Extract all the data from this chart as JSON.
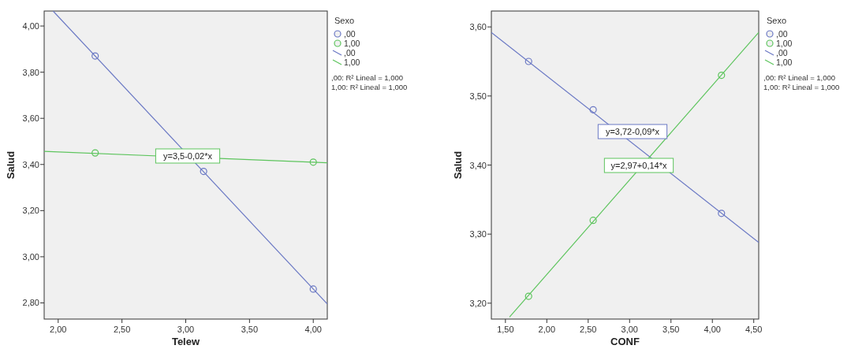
{
  "chart_data": [
    {
      "type": "scatter",
      "xlabel": "Telew",
      "ylabel": "Salud",
      "legend_title": "Sexo",
      "legend": "right",
      "grid": false,
      "xlim": [
        1.89,
        4.11
      ],
      "ylim": [
        2.73,
        4.065
      ],
      "xticks": [
        {
          "value": 2,
          "label": "2,00"
        },
        {
          "value": 2.5,
          "label": "2,50"
        },
        {
          "value": 3,
          "label": "3,00"
        },
        {
          "value": 3.5,
          "label": "3,50"
        },
        {
          "value": 4,
          "label": "4,00"
        }
      ],
      "yticks": [
        {
          "value": 2.8,
          "label": "2,80"
        },
        {
          "value": 3,
          "label": "3,00"
        },
        {
          "value": 3.2,
          "label": "3,20"
        },
        {
          "value": 3.4,
          "label": "3,40"
        },
        {
          "value": 3.6,
          "label": "3,60"
        },
        {
          "value": 3.8,
          "label": "3,80"
        },
        {
          "value": 4,
          "label": "4,00"
        }
      ],
      "series": [
        {
          "name": ",00",
          "marker": "circle",
          "color": "#6a78c4",
          "x": [
            2.29,
            3.14,
            4.0
          ],
          "values": [
            3.87,
            3.37,
            2.86
          ]
        },
        {
          "name": "1,00",
          "marker": "circle",
          "color": "#5cc45c",
          "x": [
            2.29,
            4.0
          ],
          "values": [
            3.45,
            3.41
          ]
        },
        {
          "name": ",00",
          "type": "line",
          "color": "#6a78c4",
          "line_style": "solid",
          "x": [
            1.96,
            4.11
          ],
          "values": [
            4.065,
            2.795
          ]
        },
        {
          "name": "1,00",
          "type": "line",
          "color": "#5cc45c",
          "line_style": "solid",
          "x": [
            1.89,
            4.11
          ],
          "values": [
            3.457,
            3.407
          ]
        }
      ],
      "annotations": [
        "y=3,5-0,02*x",
        ",00: R² Lineal = 1,000",
        "1,00: R² Lineal = 1,000"
      ]
    },
    {
      "type": "scatter",
      "xlabel": "CONF",
      "ylabel": "Salud",
      "legend_title": "Sexo",
      "legend": "right",
      "grid": false,
      "xlim": [
        1.33,
        4.56
      ],
      "ylim": [
        3.177,
        3.623
      ],
      "xticks": [
        {
          "value": 1.5,
          "label": "1,50"
        },
        {
          "value": 2,
          "label": "2,00"
        },
        {
          "value": 2.5,
          "label": "2,50"
        },
        {
          "value": 3,
          "label": "3,00"
        },
        {
          "value": 3.5,
          "label": "3,50"
        },
        {
          "value": 4,
          "label": "4,00"
        },
        {
          "value": 4.5,
          "label": "4,50"
        }
      ],
      "yticks": [
        {
          "value": 3.2,
          "label": "3,20"
        },
        {
          "value": 3.3,
          "label": "3,30"
        },
        {
          "value": 3.4,
          "label": "3,40"
        },
        {
          "value": 3.5,
          "label": "3,50"
        },
        {
          "value": 3.6,
          "label": "3,60"
        }
      ],
      "series": [
        {
          "name": ",00",
          "marker": "circle",
          "color": "#6a78c4",
          "x": [
            1.78,
            2.56,
            4.11
          ],
          "values": [
            3.55,
            3.48,
            3.33
          ]
        },
        {
          "name": "1,00",
          "marker": "circle",
          "color": "#5cc45c",
          "x": [
            1.78,
            2.56,
            4.11
          ],
          "values": [
            3.21,
            3.32,
            3.53
          ]
        },
        {
          "name": ",00",
          "type": "line",
          "color": "#6a78c4",
          "line_style": "solid",
          "x": [
            1.33,
            4.56
          ],
          "values": [
            3.592,
            3.288
          ]
        },
        {
          "name": "1,00",
          "type": "line",
          "color": "#5cc45c",
          "line_style": "solid",
          "x": [
            1.55,
            4.56
          ],
          "values": [
            3.18,
            3.592
          ]
        }
      ],
      "annotations": [
        "y=3,72-0,09*x",
        "y=2,97+0,14*x",
        ",00: R² Lineal = 1,000",
        "1,00: R² Lineal = 1,000"
      ]
    }
  ]
}
